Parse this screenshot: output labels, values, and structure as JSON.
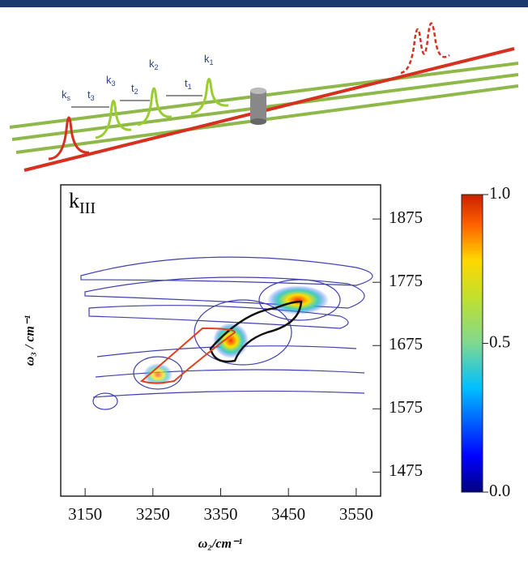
{
  "diagram": {
    "pulses": [
      {
        "label": "k",
        "sub": "s"
      },
      {
        "label": "k",
        "sub": "3"
      },
      {
        "label": "k",
        "sub": "2"
      },
      {
        "label": "k",
        "sub": "1"
      }
    ],
    "delays": [
      {
        "label": "t",
        "sub": "3"
      },
      {
        "label": "t",
        "sub": "2"
      },
      {
        "label": "t",
        "sub": "1"
      }
    ]
  },
  "plot": {
    "panel_label": "k",
    "panel_sub": "III",
    "xlabel": "ω₂/cm⁻¹",
    "ylabel": "ω₃ / cm⁻¹",
    "xlim": [
      3114,
      3586
    ],
    "xticks": [
      3150,
      3250,
      3350,
      3450,
      3550
    ],
    "ylim": [
      1437,
      1929
    ],
    "yticks": [
      1475,
      1575,
      1675,
      1775,
      1875
    ],
    "colorbar_lim": [
      0,
      1
    ],
    "colorbar_ticks": [
      {
        "value": 0,
        "label": "0.0"
      },
      0.5,
      {
        "value": 1,
        "label": "1.0"
      }
    ]
  }
}
